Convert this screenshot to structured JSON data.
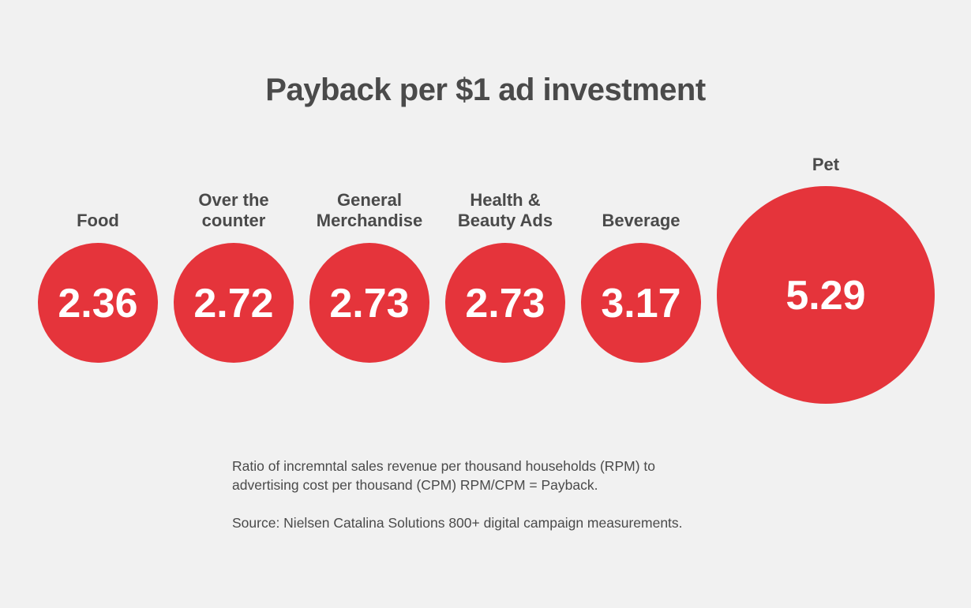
{
  "chart_data": {
    "type": "bubble",
    "title": "Payback per $1 ad investment",
    "categories": [
      [
        "Food"
      ],
      [
        "Over the",
        "counter"
      ],
      [
        "General",
        "Merchandise"
      ],
      [
        "Health &",
        "Beauty Ads"
      ],
      [
        "Beverage"
      ],
      [
        "Pet"
      ]
    ],
    "values": [
      2.36,
      2.72,
      2.73,
      2.73,
      3.17,
      5.29
    ],
    "value_labels": [
      "2.36",
      "2.72",
      "2.73",
      "2.73",
      "3.17",
      "5.29"
    ],
    "colors": {
      "bubble": "#e5343b",
      "value_text": "#ffffff",
      "label_text": "#4a4a4a",
      "background": "#f1f1f1"
    }
  },
  "notes": {
    "ratio_line_1": "Ratio of incremntal sales revenue per thousand households (RPM) to",
    "ratio_line_2": "advertising cost per thousand (CPM) RPM/CPM = Payback.",
    "source": "Source: Nielsen Catalina Solutions 800+ digital campaign measurements."
  }
}
